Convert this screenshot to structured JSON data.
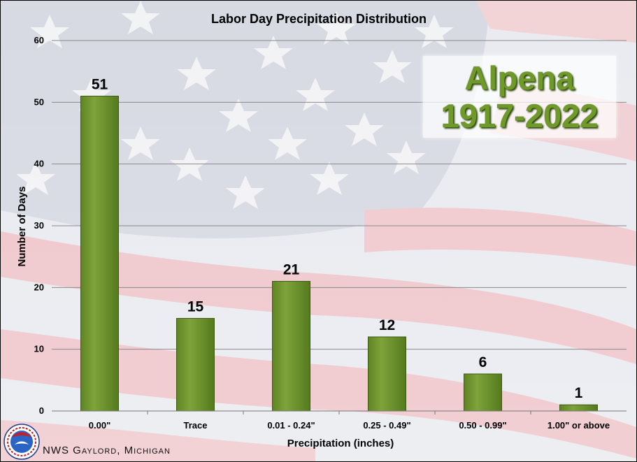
{
  "chart_data": {
    "type": "bar",
    "title": "Labor Day Precipitation Distribution",
    "xlabel": "Precipitation (inches)",
    "ylabel": "Number of Days",
    "categories": [
      "0.00\"",
      "Trace",
      "0.01 - 0.24\"",
      "0.25 - 0.49\"",
      "0.50 - 0.99\"",
      "1.00\" or above"
    ],
    "values": [
      51,
      15,
      21,
      12,
      6,
      1
    ],
    "ylim": [
      0,
      60
    ],
    "yticks": [
      0,
      10,
      20,
      30,
      40,
      50,
      60
    ],
    "grid": true,
    "legend": "none",
    "bar_color": "#7ea33a"
  },
  "annotation": {
    "station": "Alpena",
    "period": "1917-2022"
  },
  "footer": {
    "text": "NWS Gaylord, Michigan",
    "logo_icon": "nws-logo-icon",
    "logo_lettering": "National Weather Service"
  }
}
